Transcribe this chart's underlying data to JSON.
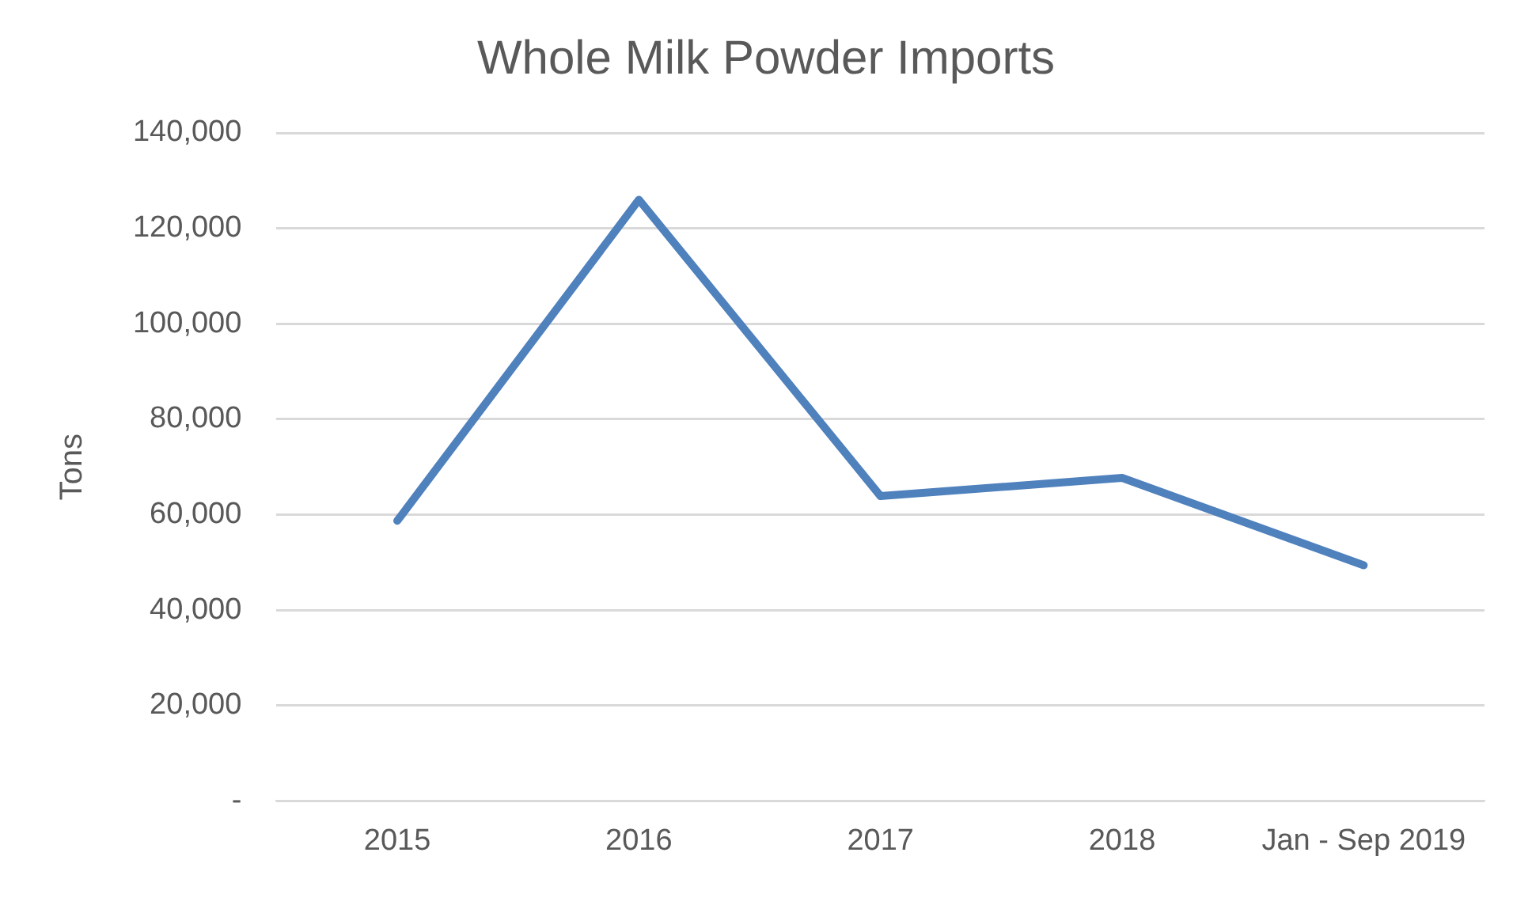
{
  "chart_data": {
    "type": "line",
    "title": "Whole Milk Powder Imports",
    "ylabel": "Tons",
    "categories": [
      "2015",
      "2016",
      "2017",
      "2018",
      "Jan - Sep 2019"
    ],
    "series": [
      {
        "color": "#4f81bd",
        "values": [
          58700,
          126000,
          63900,
          67700,
          49400
        ]
      }
    ],
    "ylim": [
      0,
      140000
    ],
    "yticks": [
      {
        "value": 0,
        "label": "-"
      },
      {
        "value": 20000,
        "label": "20,000"
      },
      {
        "value": 40000,
        "label": "40,000"
      },
      {
        "value": 60000,
        "label": "60,000"
      },
      {
        "value": 80000,
        "label": "80,000"
      },
      {
        "value": 100000,
        "label": "100,000"
      },
      {
        "value": 120000,
        "label": "120,000"
      },
      {
        "value": 140000,
        "label": "140,000"
      }
    ],
    "grid": "y",
    "legend": false,
    "marker": "none",
    "line_style": "solid"
  }
}
